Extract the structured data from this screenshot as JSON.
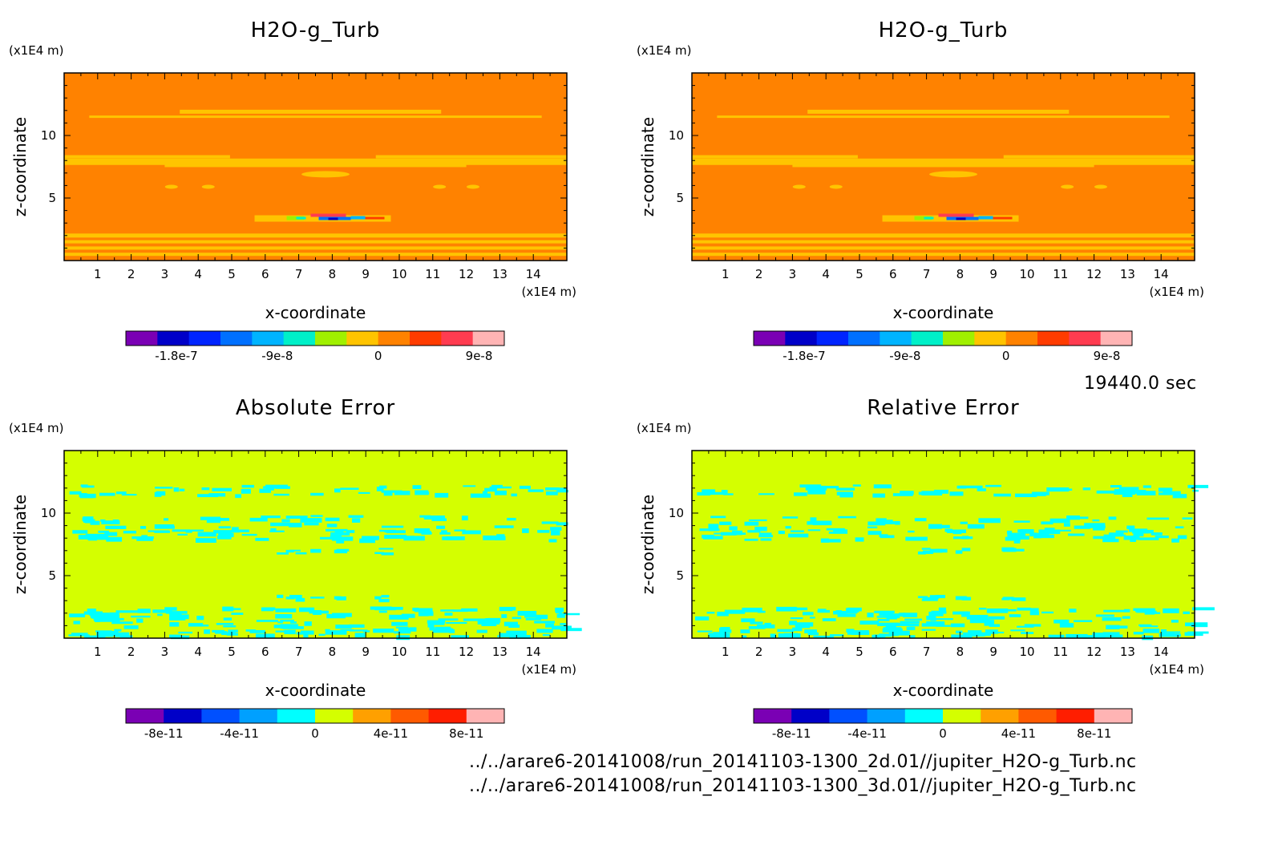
{
  "time_label": "19440.0 sec",
  "footer": {
    "line1": "../../arare6-20141008/run_20141103-1300_2d.01//jupiter_H2O-g_Turb.nc",
    "line2": "../../arare6-20141008/run_20141103-1300_3d.01//jupiter_H2O-g_Turb.nc"
  },
  "colors": {
    "field_palette": [
      "#7a00b4",
      "#0000c8",
      "#0024ff",
      "#0070ff",
      "#00b4ff",
      "#00f0c8",
      "#a0f000",
      "#ffc400",
      "#ff8200",
      "#ff3c00",
      "#ff3c50",
      "#ffb4b4"
    ],
    "error_palette": [
      "#7a00b4",
      "#0000c8",
      "#0050ff",
      "#00a0ff",
      "#00ffff",
      "#d4ff00",
      "#ffa000",
      "#ff5a00",
      "#ff1e00",
      "#ffb4b4"
    ],
    "field_background": "#ff8200",
    "field_band": "#ffc400",
    "error_background": "#d4ff00",
    "error_band": "#00ffff"
  },
  "chart_data": [
    {
      "type": "heatmap",
      "title": "H2O-g_Turb",
      "xlabel": "x-coordinate",
      "ylabel": "z-coordinate",
      "x_unit": "(x1E4 m)",
      "y_unit": "(x1E4 m)",
      "xlim": [
        0,
        15
      ],
      "ylim": [
        0,
        15
      ],
      "x_ticks": [
        1,
        2,
        3,
        4,
        5,
        6,
        7,
        8,
        9,
        10,
        11,
        12,
        13,
        14
      ],
      "y_ticks": [
        5,
        10
      ],
      "colorbar": {
        "tick_labels": [
          "-1.8e-7",
          "-9e-8",
          "0",
          "9e-8"
        ],
        "tick_values": [
          -1.8e-07,
          -9e-08,
          0,
          9e-08
        ],
        "range": [
          -2.25e-07,
          1.125e-07
        ]
      },
      "dominant_value": 0,
      "features": [
        {
          "z": 11.7,
          "value": "slightly positive band"
        },
        {
          "z": 8.0,
          "value": "slightly positive band"
        },
        {
          "z": 7.0,
          "value": "slightly positive patch"
        },
        {
          "z": 3.3,
          "value": "min/max extremes near x=7-9"
        },
        {
          "z": 1.5,
          "value": "slightly positive wavy bands"
        }
      ]
    },
    {
      "type": "heatmap",
      "title": "H2O-g_Turb",
      "xlabel": "x-coordinate",
      "ylabel": "z-coordinate",
      "x_unit": "(x1E4 m)",
      "y_unit": "(x1E4 m)",
      "xlim": [
        0,
        15
      ],
      "ylim": [
        0,
        15
      ],
      "x_ticks": [
        1,
        2,
        3,
        4,
        5,
        6,
        7,
        8,
        9,
        10,
        11,
        12,
        13,
        14
      ],
      "y_ticks": [
        5,
        10
      ],
      "colorbar": {
        "tick_labels": [
          "-1.8e-7",
          "-9e-8",
          "0",
          "9e-8"
        ],
        "tick_values": [
          -1.8e-07,
          -9e-08,
          0,
          9e-08
        ],
        "range": [
          -2.25e-07,
          1.125e-07
        ]
      },
      "dominant_value": 0,
      "features": [
        {
          "z": 11.7,
          "value": "slightly positive band"
        },
        {
          "z": 8.0,
          "value": "slightly positive band"
        },
        {
          "z": 7.0,
          "value": "slightly positive patch"
        },
        {
          "z": 3.3,
          "value": "min/max extremes near x=7-9"
        },
        {
          "z": 1.5,
          "value": "slightly positive wavy bands"
        }
      ]
    },
    {
      "type": "heatmap",
      "title": "Absolute Error",
      "xlabel": "x-coordinate",
      "ylabel": "z-coordinate",
      "x_unit": "(x1E4 m)",
      "y_unit": "(x1E4 m)",
      "xlim": [
        0,
        15
      ],
      "ylim": [
        0,
        15
      ],
      "x_ticks": [
        1,
        2,
        3,
        4,
        5,
        6,
        7,
        8,
        9,
        10,
        11,
        12,
        13,
        14
      ],
      "y_ticks": [
        5,
        10
      ],
      "colorbar": {
        "tick_labels": [
          "-8e-11",
          "-4e-11",
          "0",
          "4e-11",
          "8e-11"
        ],
        "tick_values": [
          -8e-11,
          -4e-11,
          0,
          4e-11,
          8e-11
        ],
        "range": [
          -1e-10,
          1e-10
        ]
      },
      "dominant_value": 0,
      "features": [
        {
          "z": 11.9,
          "value": "slightly negative noisy band"
        },
        {
          "z": 9.0,
          "value": "slightly negative noisy band"
        },
        {
          "z": 1.8,
          "value": "slightly negative noisy band"
        }
      ]
    },
    {
      "type": "heatmap",
      "title": "Relative Error",
      "xlabel": "x-coordinate",
      "ylabel": "z-coordinate",
      "x_unit": "(x1E4 m)",
      "y_unit": "(x1E4 m)",
      "xlim": [
        0,
        15
      ],
      "ylim": [
        0,
        15
      ],
      "x_ticks": [
        1,
        2,
        3,
        4,
        5,
        6,
        7,
        8,
        9,
        10,
        11,
        12,
        13,
        14
      ],
      "y_ticks": [
        5,
        10
      ],
      "colorbar": {
        "tick_labels": [
          "-8e-11",
          "-4e-11",
          "0",
          "4e-11",
          "8e-11"
        ],
        "tick_values": [
          -8e-11,
          -4e-11,
          0,
          4e-11,
          8e-11
        ],
        "range": [
          -1e-10,
          1e-10
        ]
      },
      "dominant_value": 0,
      "features": [
        {
          "z": 11.9,
          "value": "slightly negative noisy band"
        },
        {
          "z": 9.0,
          "value": "slightly negative noisy band"
        },
        {
          "z": 1.8,
          "value": "slightly negative noisy band"
        }
      ]
    }
  ]
}
